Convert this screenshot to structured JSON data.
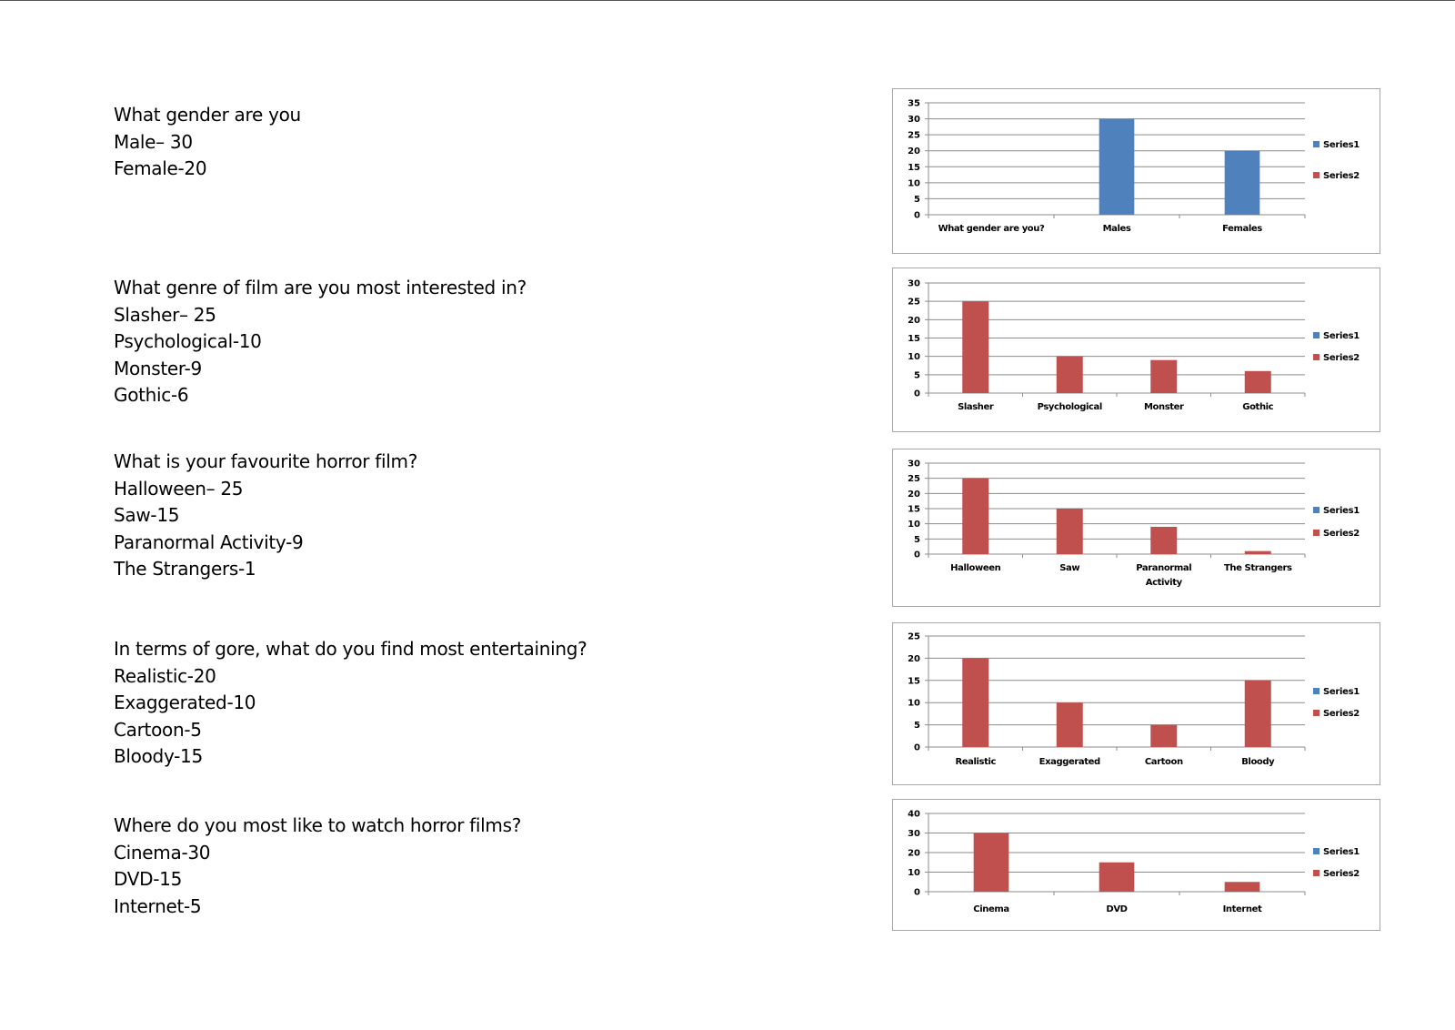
{
  "questions": [
    {
      "title": "What gender are you",
      "answers": [
        "Male– 30",
        "Female-20"
      ]
    },
    {
      "title": "What genre of film are you most interested in?",
      "answers": [
        "Slasher– 25",
        "Psychological-10",
        "Monster-9",
        "Gothic-6"
      ]
    },
    {
      "title": "What is your favourite horror film?",
      "answers": [
        "Halloween– 25",
        "Saw-15",
        "Paranormal Activity-9",
        "The Strangers-1"
      ]
    },
    {
      "title": "In terms of gore, what do you find most entertaining?",
      "answers": [
        "Realistic-20",
        "Exaggerated-10",
        "Cartoon-5",
        "Bloody-15"
      ]
    },
    {
      "title": "Where do you most like to watch horror films?",
      "answers": [
        "Cinema-30",
        "DVD-15",
        "Internet-5"
      ]
    }
  ],
  "colors": {
    "series1": "#4f81bd",
    "series2": "#c0504d",
    "grid": "#8c8c8c",
    "border": "#a6a6a6"
  },
  "chart_data": [
    {
      "type": "bar",
      "title": "",
      "categories": [
        "What gender are you?",
        "Males",
        "Females"
      ],
      "series": [
        {
          "name": "Series1",
          "values": [
            0,
            30,
            20
          ]
        },
        {
          "name": "Series2",
          "values": [
            0,
            0,
            0
          ]
        }
      ],
      "bar_series": "Series1",
      "yticks": [
        0,
        5,
        10,
        15,
        20,
        25,
        30,
        35
      ],
      "ylim": [
        0,
        35
      ],
      "grid": true,
      "legend": [
        "Series1",
        "Series2"
      ],
      "legend_position": "right"
    },
    {
      "type": "bar",
      "title": "",
      "categories": [
        "Slasher",
        "Psychological",
        "Monster",
        "Gothic"
      ],
      "series": [
        {
          "name": "Series1",
          "values": [
            0,
            0,
            0,
            0
          ]
        },
        {
          "name": "Series2",
          "values": [
            25,
            10,
            9,
            6
          ]
        }
      ],
      "bar_series": "Series2",
      "yticks": [
        0,
        5,
        10,
        15,
        20,
        25,
        30
      ],
      "ylim": [
        0,
        30
      ],
      "grid": true,
      "legend": [
        "Series1",
        "Series2"
      ],
      "legend_position": "right"
    },
    {
      "type": "bar",
      "title": "",
      "categories": [
        "Halloween",
        "Saw",
        "Paranormal Activity",
        "The Strangers"
      ],
      "series": [
        {
          "name": "Series1",
          "values": [
            0,
            0,
            0,
            0
          ]
        },
        {
          "name": "Series2",
          "values": [
            25,
            15,
            9,
            1
          ]
        }
      ],
      "bar_series": "Series2",
      "yticks": [
        0,
        5,
        10,
        15,
        20,
        25,
        30
      ],
      "ylim": [
        0,
        30
      ],
      "grid": true,
      "legend": [
        "Series1",
        "Series2"
      ],
      "legend_position": "right"
    },
    {
      "type": "bar",
      "title": "",
      "categories": [
        "Realistic",
        "Exaggerated",
        "Cartoon",
        "Bloody"
      ],
      "series": [
        {
          "name": "Series1",
          "values": [
            0,
            0,
            0,
            0
          ]
        },
        {
          "name": "Series2",
          "values": [
            20,
            10,
            5,
            15
          ]
        }
      ],
      "bar_series": "Series2",
      "yticks": [
        0,
        5,
        10,
        15,
        20,
        25
      ],
      "ylim": [
        0,
        25
      ],
      "grid": true,
      "legend": [
        "Series1",
        "Series2"
      ],
      "legend_position": "right"
    },
    {
      "type": "bar",
      "title": "",
      "categories": [
        "Cinema",
        "DVD",
        "Internet"
      ],
      "series": [
        {
          "name": "Series1",
          "values": [
            0,
            0,
            0
          ]
        },
        {
          "name": "Series2",
          "values": [
            30,
            15,
            5
          ]
        }
      ],
      "bar_series": "Series2",
      "yticks": [
        0,
        10,
        20,
        30,
        40
      ],
      "ylim": [
        0,
        40
      ],
      "grid": true,
      "legend": [
        "Series1",
        "Series2"
      ],
      "legend_position": "right"
    }
  ]
}
